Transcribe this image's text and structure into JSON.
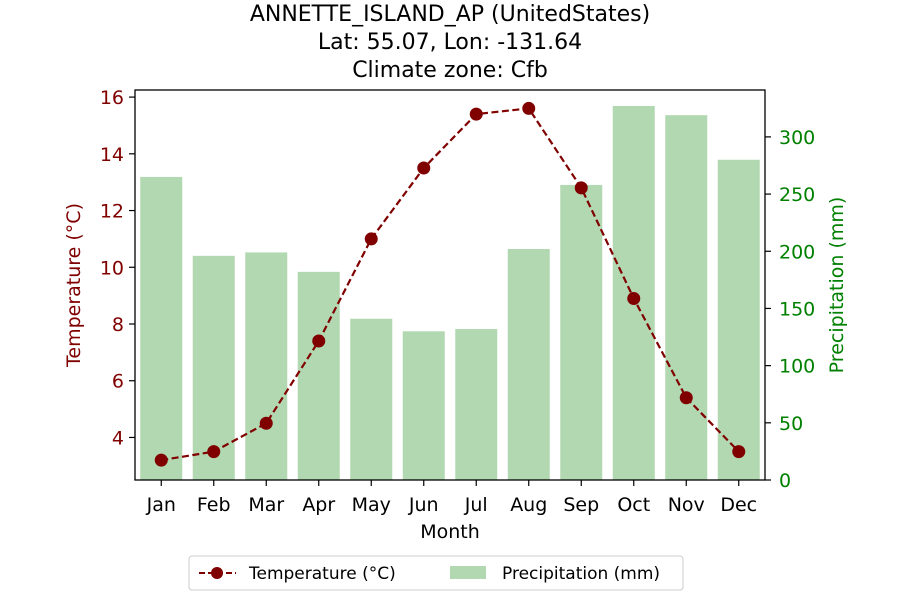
{
  "chart_data": {
    "type": "bar+line",
    "title_lines": [
      "ANNETTE_ISLAND_AP (UnitedStates)",
      "Lat: 55.07, Lon: -131.64",
      "Climate zone: Cfb"
    ],
    "xlabel": "Month",
    "ylabel_left": "Temperature (°C)",
    "ylabel_right": "Precipitation (mm)",
    "categories": [
      "Jan",
      "Feb",
      "Mar",
      "Apr",
      "May",
      "Jun",
      "Jul",
      "Aug",
      "Sep",
      "Oct",
      "Nov",
      "Dec"
    ],
    "temperature": {
      "name": "Temperature (°C)",
      "values": [
        3.2,
        3.5,
        4.5,
        7.4,
        11.0,
        13.5,
        15.4,
        15.6,
        12.8,
        8.9,
        5.4,
        3.5
      ],
      "color": "#800000",
      "ylim": [
        2.5,
        16.25
      ],
      "ticks": [
        4,
        6,
        8,
        10,
        12,
        14,
        16
      ]
    },
    "precipitation": {
      "name": "Precipitation (mm)",
      "values": [
        265,
        196,
        199,
        182,
        141,
        130,
        132,
        202,
        258,
        327,
        319,
        280
      ],
      "color": "#b2d8b2",
      "ylim": [
        0,
        341
      ],
      "ticks": [
        0,
        50,
        100,
        150,
        200,
        250,
        300
      ]
    },
    "left_axis_color": "#800000",
    "right_axis_color": "#008000",
    "legend_position": "bottom-center",
    "grid": false
  }
}
